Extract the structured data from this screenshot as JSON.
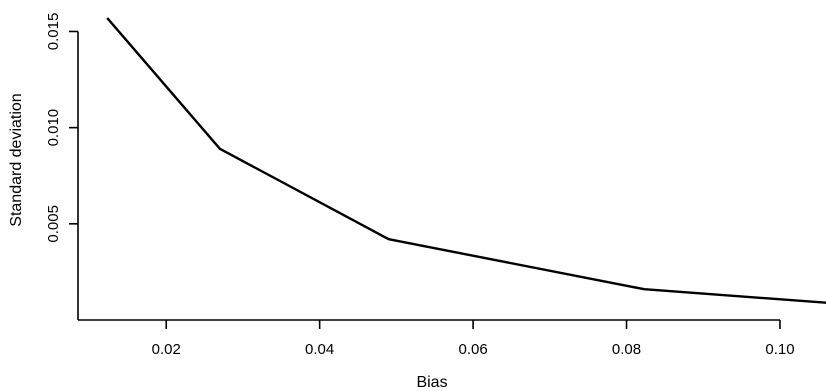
{
  "chart_data": {
    "type": "line",
    "title": "",
    "xlabel": "Bias",
    "ylabel": "Standard deviation",
    "xlim": [
      0.0085,
      0.106
    ],
    "ylim": [
      0.0,
      0.0157
    ],
    "x_ticks": [
      0.02,
      0.04,
      0.06,
      0.08,
      0.1
    ],
    "x_tick_labels": [
      "0.02",
      "0.04",
      "0.06",
      "0.08",
      "0.10"
    ],
    "y_ticks": [
      0.005,
      0.01,
      0.015
    ],
    "y_tick_labels": [
      "0.005",
      "0.010",
      "0.015"
    ],
    "grid": false,
    "legend": "none",
    "series": [
      {
        "x": [
          0.0123,
          0.027,
          0.049,
          0.0823,
          0.106
        ],
        "y": [
          0.0157,
          0.0089,
          0.0042,
          0.0016,
          0.0009
        ]
      }
    ]
  }
}
